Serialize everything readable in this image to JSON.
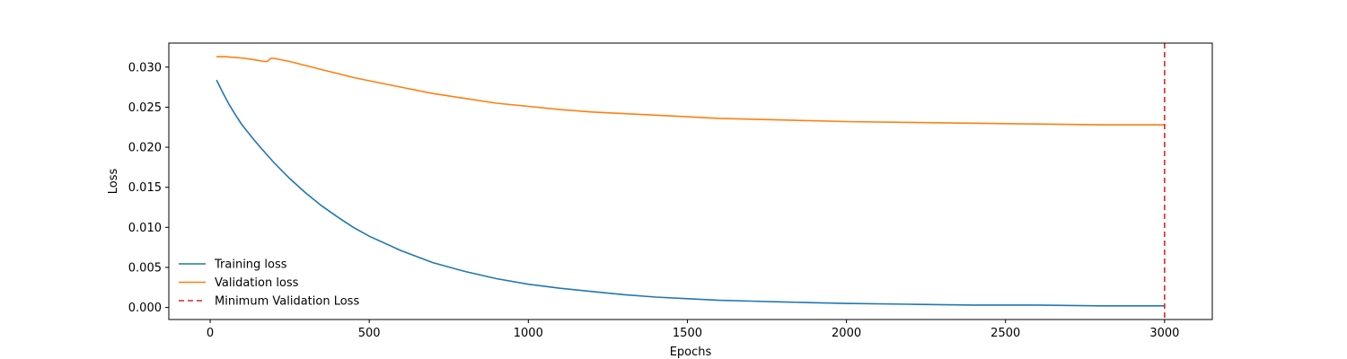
{
  "chart_data": {
    "type": "line",
    "xlabel": "Epochs",
    "ylabel": "Loss",
    "xlim": [
      -130,
      3150
    ],
    "ylim": [
      -0.0015,
      0.033
    ],
    "xticks": [
      0,
      500,
      1000,
      1500,
      2000,
      2500,
      3000
    ],
    "xtick_labels": [
      "0",
      "500",
      "1000",
      "1500",
      "2000",
      "2500",
      "3000"
    ],
    "yticks": [
      0.0,
      0.005,
      0.01,
      0.015,
      0.02,
      0.025,
      0.03
    ],
    "ytick_labels": [
      "0.000",
      "0.005",
      "0.010",
      "0.015",
      "0.020",
      "0.025",
      "0.030"
    ],
    "grid": false,
    "legend_position": "lower-left",
    "series": [
      {
        "name": "Training loss",
        "color": "#1f77b4",
        "x": [
          20,
          40,
          60,
          80,
          100,
          120,
          140,
          160,
          180,
          200,
          250,
          300,
          350,
          400,
          450,
          500,
          600,
          700,
          800,
          900,
          1000,
          1100,
          1200,
          1300,
          1400,
          1500,
          1600,
          1700,
          1800,
          1900,
          2000,
          2200,
          2400,
          2600,
          2800,
          3000
        ],
        "y": [
          0.0284,
          0.0268,
          0.0253,
          0.024,
          0.0228,
          0.0218,
          0.0208,
          0.0199,
          0.019,
          0.0181,
          0.0161,
          0.0143,
          0.0127,
          0.0113,
          0.01,
          0.0089,
          0.0071,
          0.0056,
          0.0045,
          0.0036,
          0.0029,
          0.0024,
          0.002,
          0.0016,
          0.0013,
          0.0011,
          0.0009,
          0.0008,
          0.0007,
          0.0006,
          0.0005,
          0.0004,
          0.0003,
          0.0003,
          0.0002,
          0.0002
        ]
      },
      {
        "name": "Validation loss",
        "color": "#ff7f0e",
        "x": [
          20,
          50,
          80,
          110,
          140,
          170,
          180,
          190,
          200,
          250,
          300,
          350,
          400,
          450,
          500,
          600,
          700,
          800,
          900,
          1000,
          1100,
          1200,
          1300,
          1400,
          1500,
          1600,
          1700,
          1800,
          1900,
          2000,
          2200,
          2400,
          2600,
          2800,
          3000
        ],
        "y": [
          0.0313,
          0.0313,
          0.0312,
          0.0311,
          0.0309,
          0.0307,
          0.0307,
          0.0311,
          0.0311,
          0.0307,
          0.0302,
          0.0297,
          0.0292,
          0.0287,
          0.0283,
          0.0275,
          0.0267,
          0.0261,
          0.0255,
          0.0251,
          0.0247,
          0.0244,
          0.0242,
          0.024,
          0.0238,
          0.0236,
          0.0235,
          0.0234,
          0.0233,
          0.0232,
          0.0231,
          0.023,
          0.0229,
          0.0228,
          0.0228
        ]
      }
    ],
    "vlines": [
      {
        "name": "Minimum Validation Loss",
        "x": 3000,
        "color": "#d62728",
        "style": "dashed"
      }
    ]
  }
}
